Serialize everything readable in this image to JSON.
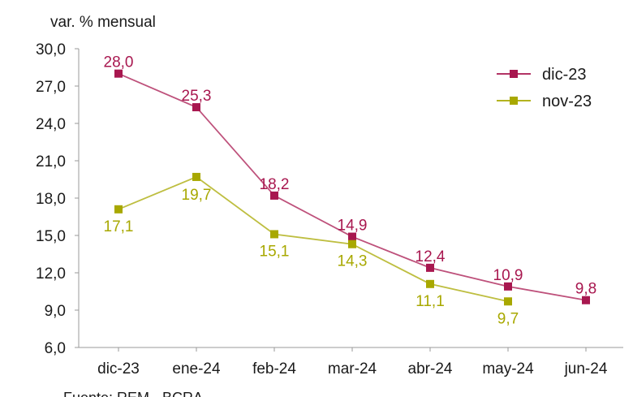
{
  "chart_data": {
    "type": "line",
    "ylabel": "var. % mensual",
    "categories": [
      "dic-23",
      "ene-24",
      "feb-24",
      "mar-24",
      "abr-24",
      "may-24",
      "jun-24"
    ],
    "y_ticks": [
      "6,0",
      "9,0",
      "12,0",
      "15,0",
      "18,0",
      "21,0",
      "24,0",
      "27,0",
      "30,0"
    ],
    "ylim": [
      6,
      30
    ],
    "grid": false,
    "legend_position": "top-right",
    "series": [
      {
        "name": "dic-23",
        "color": "#a8174f",
        "values": [
          28.0,
          25.3,
          18.2,
          14.9,
          12.4,
          10.9,
          9.8
        ],
        "labels": [
          "28,0",
          "25,3",
          "18,2",
          "14,9",
          "12,4",
          "10,9",
          "9,8"
        ]
      },
      {
        "name": "nov-23",
        "color": "#a8a800",
        "values": [
          17.1,
          19.7,
          15.1,
          14.3,
          11.1,
          9.7,
          null
        ],
        "labels": [
          "17,1",
          "19,7",
          "15,1",
          "14,3",
          "11,1",
          "9,7",
          null
        ]
      }
    ],
    "source": "Fuente: REM - BCRA"
  }
}
